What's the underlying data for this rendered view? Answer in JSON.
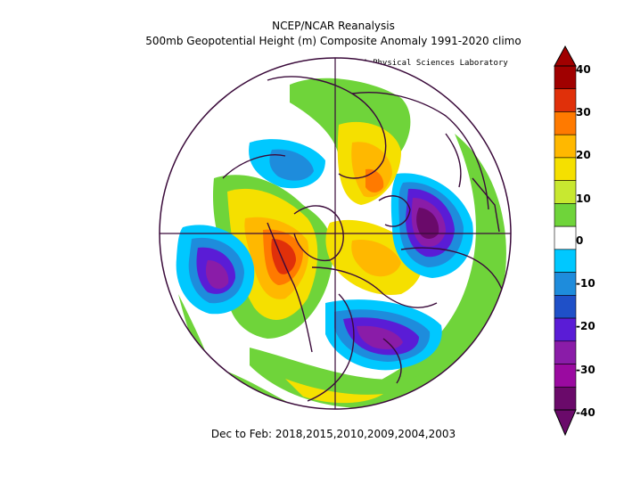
{
  "titles": {
    "line1": "NCEP/NCAR Reanalysis",
    "line2": "500mb Geopotential Height (m) Composite Anomaly 1991-2020 climo",
    "credit": "NOAA Physical Sciences Laboratory",
    "footer": "Dec to Feb: 2018,2015,2010,2009,2004,2003"
  },
  "colorbar": {
    "labels": [
      "40",
      "30",
      "20",
      "10",
      "0",
      "-10",
      "-20",
      "-30",
      "-40"
    ],
    "colors": [
      "#a00000",
      "#e0300a",
      "#ff7a00",
      "#ffb800",
      "#f5e000",
      "#c8e830",
      "#6fd43a",
      "#ffffff",
      "#00c8ff",
      "#1e8cdc",
      "#1f50c8",
      "#5a1cd6",
      "#8a1ca8",
      "#9a0aa0",
      "#6a0a6a"
    ]
  },
  "map": {
    "projection": "north-polar-stereographic",
    "regions": [
      "positive anomaly over Alaska / Bering Sea",
      "positive anomaly over Scandinavia",
      "strong negative anomaly over western Russia",
      "negative anomaly over eastern North America",
      "negative anomaly over eastern Pacific"
    ]
  }
}
